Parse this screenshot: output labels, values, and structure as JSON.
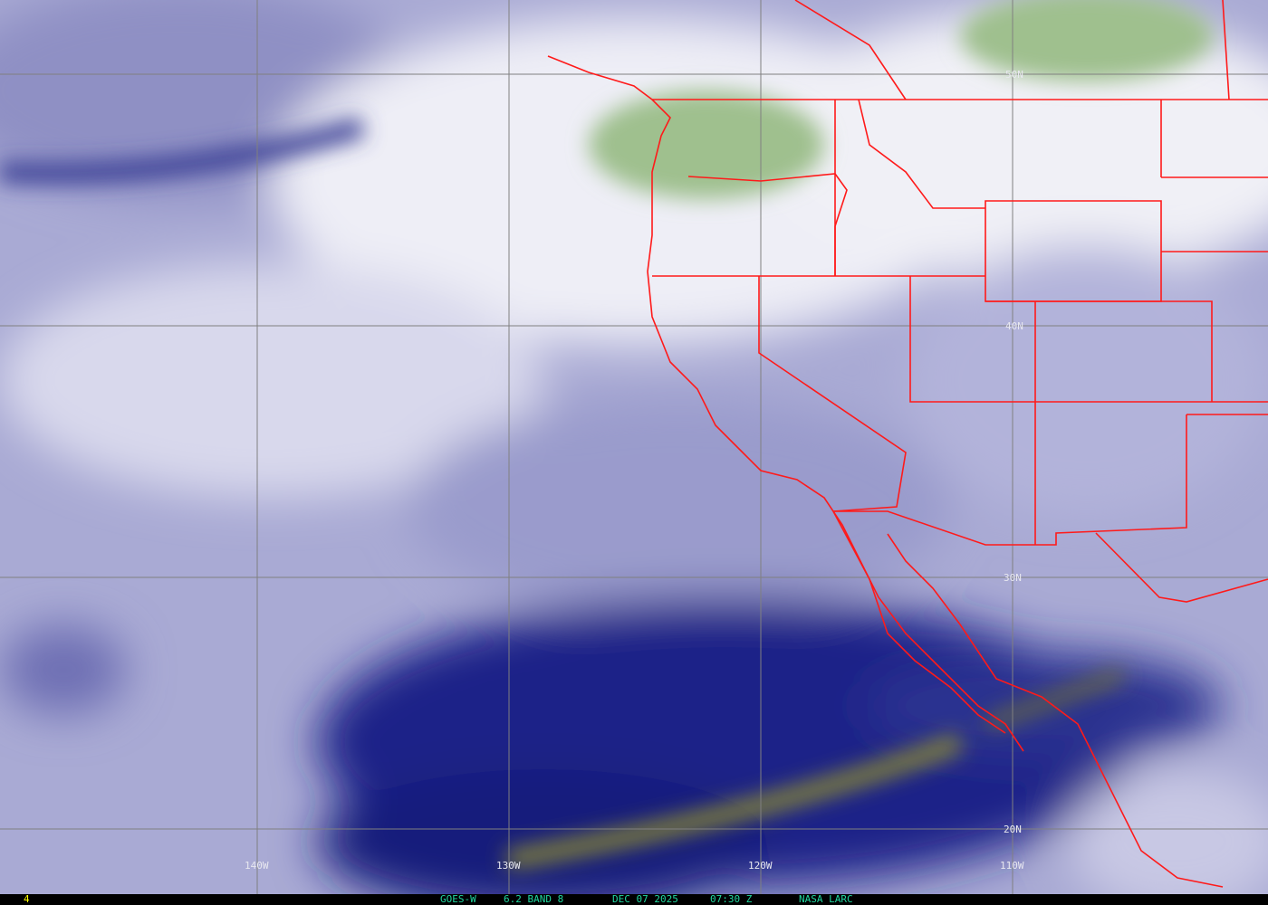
{
  "image": {
    "satellite": "GOES-W",
    "product": "6.2 BAND 8",
    "date": "DEC 07 2025",
    "time": "07:30 Z",
    "source": "NASA LARC",
    "frame_number": "4"
  },
  "grid": {
    "longitude_labels": [
      "140W",
      "130W",
      "120W",
      "110W"
    ],
    "latitude_labels": [
      "50N",
      "40N",
      "30N",
      "20N"
    ]
  },
  "colors": {
    "boundaries": "#ff1a1a",
    "grid": "#808080",
    "caption_text": "#20d8a0",
    "frame_number": "#ffff00",
    "dry_air": "#1a1f80",
    "moist_air": "#e8e8f2",
    "high_moisture": "#7fae6a",
    "very_dry": "#8a8a30"
  }
}
